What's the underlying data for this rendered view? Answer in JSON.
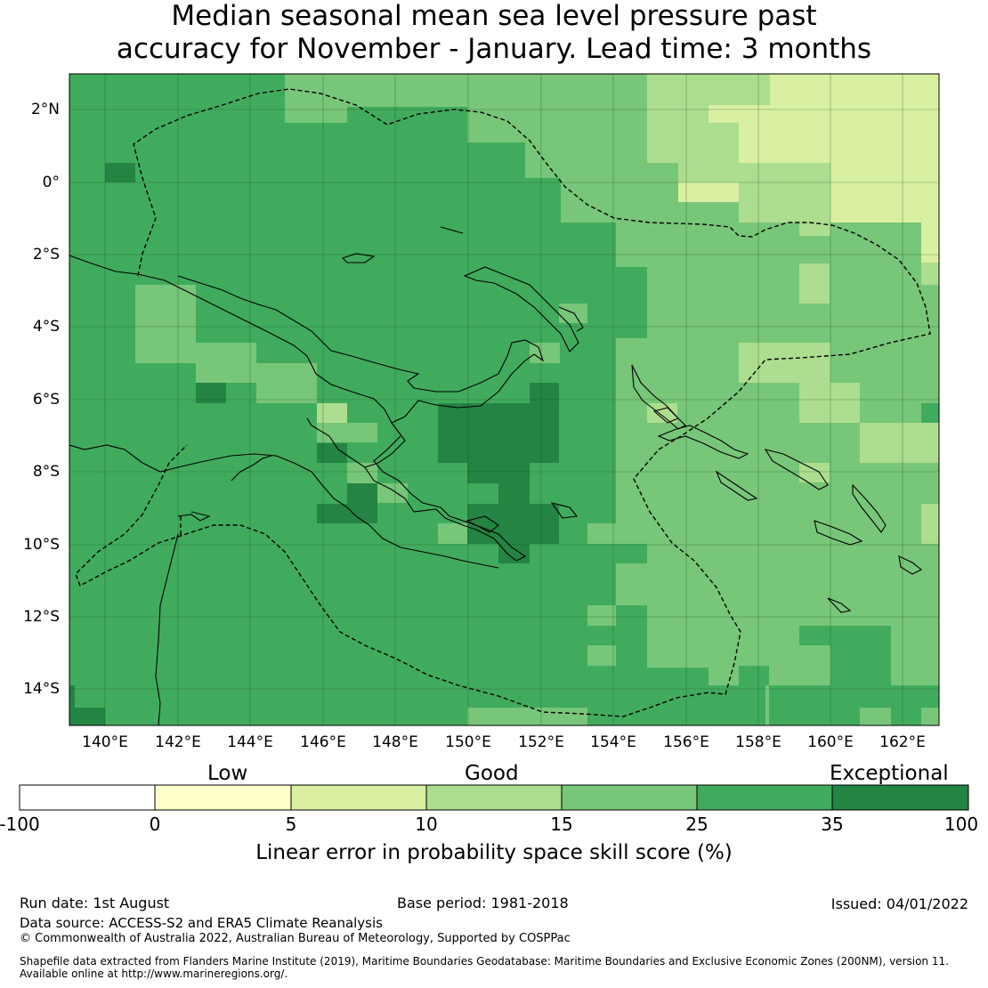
{
  "title": {
    "line1": "Median seasonal mean sea level pressure past",
    "line2": "accuracy for November - January. Lead time: 3 months"
  },
  "map": {
    "lat_labels": [
      "2°N",
      "0°",
      "2°S",
      "4°S",
      "6°S",
      "8°S",
      "10°S",
      "12°S",
      "14°S"
    ],
    "lon_labels": [
      "140°E",
      "142°E",
      "144°E",
      "146°E",
      "148°E",
      "150°E",
      "152°E",
      "154°E",
      "156°E",
      "158°E",
      "160°E",
      "162°E"
    ],
    "extent": {
      "lon_min": 139,
      "lon_max": 163,
      "lat_min": -15,
      "lat_max": 3
    },
    "border_style": "dashed",
    "grid": true
  },
  "legend": {
    "categories": [
      "Low",
      "Good",
      "Exceptional"
    ],
    "ticks": [
      "-100",
      "0",
      "5",
      "10",
      "15",
      "25",
      "35",
      "100"
    ],
    "colors": [
      "#ffffff",
      "#ffffcc",
      "#d9f0a3",
      "#addd8e",
      "#78c679",
      "#41ab5d",
      "#238443"
    ],
    "label": "Linear error in probability space skill score (%)"
  },
  "footer": {
    "run_date": "Run date: 1st August",
    "base_period": "Base period: 1981-2018",
    "issued": "Issued: 04/01/2022",
    "data_source": "Data source: ACCESS-S2 and ERA5 Climate Reanalysis",
    "copyright": "© Commonwealth of Australia 2022, Australian Bureau of Meteorology, Supported by COSPPac",
    "shapefile_1": "Shapefile data extracted from Flanders Marine Institute (2019), Maritime Boundaries Geodatabase: Maritime Boundaries and Exclusive Economic Zones (200NM), version 11.",
    "shapefile_2": "Available online at http://www.marineregions.org/."
  }
}
